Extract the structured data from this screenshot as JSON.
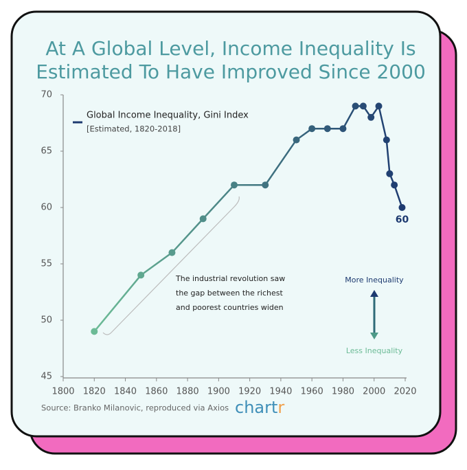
{
  "chart_data": {
    "type": "line",
    "title": [
      "At A Global Level, Income Inequality Is",
      "Estimated To Have Improved Since 2000"
    ],
    "legend_title": "Global Income Inequality, Gini Index",
    "legend_subtitle": "[Estimated, 1820-2018]",
    "annotation": [
      "The industrial revolution saw",
      "the gap between the richest",
      "and poorest countries widen"
    ],
    "arrow_top": "More Inequality",
    "arrow_bottom": "Less Inequality",
    "source": "Source: Branko Milanovic, reproduced via Axios",
    "logo": {
      "main": "chart",
      "accent": "r"
    },
    "x": [
      1820,
      1850,
      1870,
      1890,
      1910,
      1930,
      1950,
      1960,
      1970,
      1980,
      1988,
      1993,
      1998,
      2003,
      2008,
      2010,
      2013,
      2018
    ],
    "y": [
      49,
      54,
      56,
      59,
      62,
      62,
      66,
      67,
      67,
      67,
      69,
      69,
      68,
      69,
      66,
      63,
      62,
      60
    ],
    "line_colors": [
      "#6cbb96",
      "#1d3a70"
    ],
    "xlim": [
      1800,
      2020
    ],
    "xticks": [
      1800,
      1820,
      1840,
      1860,
      1880,
      1900,
      1920,
      1940,
      1960,
      1980,
      2000,
      2020
    ],
    "ylim": [
      45,
      70
    ],
    "yticks": [
      45,
      50,
      55,
      60,
      65,
      70
    ]
  }
}
